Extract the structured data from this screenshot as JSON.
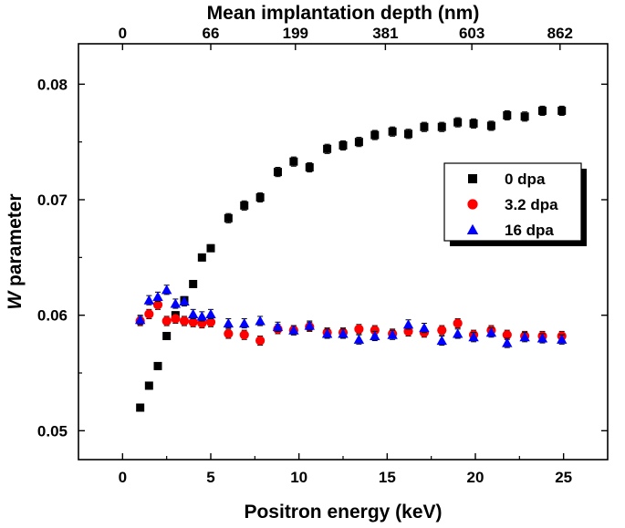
{
  "chart_data": {
    "type": "scatter",
    "xlabel": "Positron energy (keV)",
    "ylabel_italic": "W",
    "ylabel_rest": " parameter",
    "top_xlabel": "Mean implantation depth (nm)",
    "xlim": [
      -2.5,
      27.5
    ],
    "ylim": [
      0.0475,
      0.0835
    ],
    "x_ticks": [
      0,
      5,
      10,
      15,
      20,
      25
    ],
    "x_tick_labels": [
      "0",
      "5",
      "10",
      "15",
      "20",
      "25"
    ],
    "y_ticks": [
      0.05,
      0.06,
      0.07,
      0.08
    ],
    "y_tick_labels": [
      "0.05",
      "0.06",
      "0.07",
      "0.08"
    ],
    "top_ticks": [
      0.0,
      5.0,
      9.8,
      14.9,
      19.8,
      24.8
    ],
    "top_tick_labels": [
      "0",
      "66",
      "199",
      "381",
      "603",
      "862"
    ],
    "legend": [
      {
        "label": "0 dpa",
        "marker": "square",
        "color": "#000000"
      },
      {
        "label": "3.2 dpa",
        "marker": "circle",
        "color": "#ff0000"
      },
      {
        "label": "16 dpa",
        "marker": "triangle",
        "color": "#0000ff"
      }
    ],
    "series": [
      {
        "name": "0 dpa",
        "marker": "square",
        "color": "#000000",
        "x": [
          1.0,
          1.5,
          2.0,
          2.5,
          3.0,
          3.5,
          4.0,
          4.5,
          5.0,
          6.0,
          6.9,
          7.8,
          8.8,
          9.7,
          10.6,
          11.6,
          12.5,
          13.4,
          14.3,
          15.3,
          16.2,
          17.1,
          18.1,
          19.0,
          19.9,
          20.9,
          21.8,
          22.8,
          23.8,
          24.9
        ],
        "y": [
          0.052,
          0.0539,
          0.0556,
          0.0582,
          0.06,
          0.0613,
          0.0627,
          0.065,
          0.0658,
          0.0684,
          0.0695,
          0.0702,
          0.0724,
          0.0733,
          0.0728,
          0.0744,
          0.0747,
          0.075,
          0.0756,
          0.0759,
          0.0757,
          0.0763,
          0.0763,
          0.0767,
          0.0766,
          0.0764,
          0.0773,
          0.0772,
          0.0777,
          0.0777
        ],
        "err": [
          0.0003,
          0.0003,
          0.0003,
          0.0003,
          0.0003,
          0.0003,
          0.0003,
          0.0003,
          0.0003,
          0.0004,
          0.0004,
          0.0004,
          0.0004,
          0.0004,
          0.0004,
          0.0004,
          0.0004,
          0.0004,
          0.0004,
          0.0004,
          0.0004,
          0.0004,
          0.0004,
          0.0004,
          0.0004,
          0.0004,
          0.0004,
          0.0004,
          0.0004,
          0.0004
        ]
      },
      {
        "name": "3.2 dpa",
        "marker": "circle",
        "color": "#ff0000",
        "x": [
          1.0,
          1.5,
          2.0,
          2.5,
          3.0,
          3.5,
          4.0,
          4.5,
          5.0,
          6.0,
          6.9,
          7.8,
          8.8,
          9.7,
          10.6,
          11.6,
          12.5,
          13.4,
          14.3,
          15.3,
          16.2,
          17.1,
          18.1,
          19.0,
          19.9,
          20.9,
          21.8,
          22.8,
          23.8,
          24.9
        ],
        "y": [
          0.0595,
          0.0601,
          0.0609,
          0.0595,
          0.0597,
          0.0595,
          0.0594,
          0.0593,
          0.0594,
          0.0584,
          0.0583,
          0.0578,
          0.0588,
          0.0587,
          0.059,
          0.0585,
          0.0585,
          0.0588,
          0.0587,
          0.0584,
          0.0586,
          0.0585,
          0.0587,
          0.0593,
          0.0583,
          0.0587,
          0.0583,
          0.0582,
          0.0582,
          0.0582
        ],
        "err": [
          0.0004,
          0.0004,
          0.0004,
          0.0004,
          0.0004,
          0.0004,
          0.0004,
          0.0004,
          0.0004,
          0.0004,
          0.0004,
          0.0004,
          0.0004,
          0.0004,
          0.0004,
          0.0004,
          0.0004,
          0.0004,
          0.0004,
          0.0004,
          0.0004,
          0.0004,
          0.0004,
          0.0004,
          0.0004,
          0.0004,
          0.0004,
          0.0004,
          0.0004,
          0.0004
        ]
      },
      {
        "name": "16 dpa",
        "marker": "triangle",
        "color": "#0000ff",
        "x": [
          1.0,
          1.5,
          2.0,
          2.5,
          3.0,
          3.5,
          4.0,
          4.5,
          5.0,
          6.0,
          6.9,
          7.8,
          8.8,
          9.7,
          10.6,
          11.6,
          12.5,
          13.4,
          14.3,
          15.3,
          16.2,
          17.1,
          18.1,
          19.0,
          19.9,
          20.9,
          21.8,
          22.8,
          23.8,
          24.9
        ],
        "y": [
          0.0596,
          0.0613,
          0.0616,
          0.0622,
          0.061,
          0.0612,
          0.0601,
          0.0599,
          0.0601,
          0.0593,
          0.0593,
          0.0595,
          0.059,
          0.0587,
          0.0591,
          0.0584,
          0.0584,
          0.0579,
          0.0582,
          0.0583,
          0.0592,
          0.0589,
          0.0578,
          0.0584,
          0.0581,
          0.0585,
          0.0576,
          0.0581,
          0.058,
          0.0579
        ],
        "err": [
          0.0004,
          0.0004,
          0.0004,
          0.0004,
          0.0004,
          0.0004,
          0.0004,
          0.0004,
          0.0004,
          0.0004,
          0.0004,
          0.0004,
          0.0004,
          0.0004,
          0.0004,
          0.0004,
          0.0004,
          0.0004,
          0.0004,
          0.0004,
          0.0004,
          0.0004,
          0.0004,
          0.0004,
          0.0004,
          0.0004,
          0.0004,
          0.0004,
          0.0004,
          0.0004
        ]
      }
    ]
  }
}
